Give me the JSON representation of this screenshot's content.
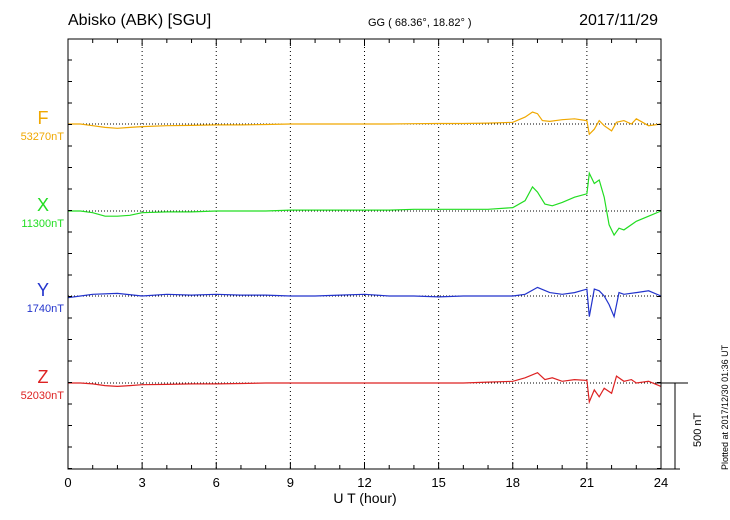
{
  "header": {
    "station": "Abisko (ABK)  [SGU]",
    "coords": "GG ( 68.36°,  18.82° )",
    "date": "2017/11/29"
  },
  "plotted_note": "Plotted at 2017/12/30 01:36 UT",
  "scale_bar": {
    "label": "500 nT",
    "value_nT": 500
  },
  "chart_data": {
    "type": "line",
    "xlabel": "U T (hour)",
    "xlim": [
      0,
      24
    ],
    "xticks": [
      0,
      3,
      6,
      9,
      12,
      15,
      18,
      21,
      24
    ],
    "xtick_labels": [
      "0",
      "3",
      "6",
      "9",
      "12",
      "15",
      "18",
      "21",
      "24"
    ],
    "grid": "dotted vertical lines every 3 hours",
    "series": [
      {
        "name": "F",
        "baseline_label": "53270nT",
        "color": "#f0a800",
        "x": [
          0,
          0.5,
          1.0,
          1.5,
          2.0,
          2.5,
          3.0,
          4.0,
          5.0,
          6.0,
          7.0,
          8.0,
          9.0,
          10.0,
          11.0,
          12.0,
          13.0,
          14.0,
          15.0,
          16.0,
          17.0,
          18.0,
          18.5,
          18.8,
          19.0,
          19.2,
          19.5,
          20.0,
          20.5,
          21.0,
          21.1,
          21.3,
          21.5,
          21.7,
          22.0,
          22.2,
          22.5,
          22.8,
          23.0,
          23.5,
          24.0
        ],
        "values": [
          0,
          0,
          -10,
          -20,
          -25,
          -20,
          -15,
          -10,
          -8,
          -5,
          -5,
          -3,
          0,
          0,
          0,
          0,
          0,
          2,
          3,
          3,
          5,
          10,
          40,
          70,
          60,
          20,
          15,
          25,
          30,
          20,
          -60,
          -30,
          20,
          -10,
          -40,
          10,
          20,
          0,
          30,
          -10,
          0
        ]
      },
      {
        "name": "X",
        "baseline_label": "11300nT",
        "color": "#22dd22",
        "x": [
          0,
          0.5,
          1.0,
          1.5,
          2.0,
          2.5,
          3.0,
          4.0,
          5.0,
          6.0,
          7.0,
          8.0,
          9.0,
          10.0,
          11.0,
          12.0,
          13.0,
          14.0,
          15.0,
          16.0,
          17.0,
          18.0,
          18.5,
          18.8,
          19.0,
          19.3,
          19.6,
          20.0,
          20.5,
          21.0,
          21.1,
          21.3,
          21.5,
          21.7,
          21.9,
          22.1,
          22.3,
          22.5,
          23.0,
          23.5,
          24.0
        ],
        "values": [
          0,
          0,
          -10,
          -30,
          -30,
          -25,
          -10,
          -5,
          -5,
          0,
          0,
          0,
          5,
          5,
          5,
          5,
          5,
          10,
          10,
          10,
          10,
          20,
          60,
          140,
          110,
          40,
          30,
          50,
          80,
          100,
          220,
          160,
          180,
          80,
          -80,
          -140,
          -100,
          -110,
          -60,
          -30,
          0
        ]
      },
      {
        "name": "Y",
        "baseline_label": "1740nT",
        "color": "#2233cc",
        "x": [
          0,
          0.5,
          1.0,
          2.0,
          3.0,
          4.0,
          5.0,
          6.0,
          7.0,
          8.0,
          9.0,
          10.0,
          11.0,
          12.0,
          13.0,
          14.0,
          15.0,
          16.0,
          17.0,
          18.0,
          18.5,
          19.0,
          19.5,
          20.0,
          20.5,
          21.0,
          21.1,
          21.3,
          21.5,
          21.7,
          21.9,
          22.1,
          22.3,
          22.5,
          23.0,
          23.5,
          24.0
        ],
        "values": [
          -10,
          0,
          10,
          15,
          0,
          10,
          5,
          10,
          5,
          5,
          0,
          0,
          5,
          10,
          0,
          0,
          -5,
          0,
          0,
          0,
          10,
          50,
          20,
          10,
          20,
          40,
          -120,
          40,
          30,
          0,
          -50,
          -120,
          20,
          10,
          20,
          30,
          0
        ]
      },
      {
        "name": "Z",
        "baseline_label": "52030nT",
        "color": "#dd2222",
        "x": [
          0,
          0.5,
          1.0,
          1.5,
          2.0,
          2.5,
          3.0,
          4.0,
          5.0,
          6.0,
          7.0,
          8.0,
          9.0,
          10.0,
          11.0,
          12.0,
          13.0,
          14.0,
          15.0,
          16.0,
          17.0,
          18.0,
          18.5,
          19.0,
          19.3,
          19.6,
          20.0,
          20.5,
          21.0,
          21.1,
          21.3,
          21.5,
          21.7,
          22.0,
          22.2,
          22.5,
          22.8,
          23.0,
          23.5,
          24.0
        ],
        "values": [
          0,
          0,
          -5,
          -15,
          -20,
          -15,
          -10,
          -8,
          -5,
          -5,
          -3,
          0,
          0,
          0,
          0,
          0,
          0,
          0,
          0,
          0,
          5,
          10,
          30,
          60,
          20,
          30,
          10,
          20,
          15,
          -110,
          -40,
          -80,
          -30,
          -60,
          40,
          10,
          20,
          0,
          10,
          -20
        ]
      }
    ]
  }
}
